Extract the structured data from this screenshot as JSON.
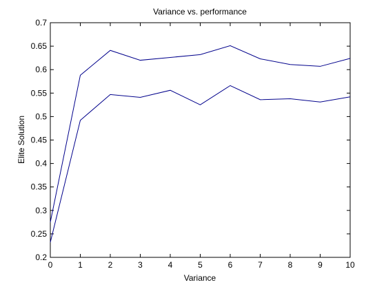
{
  "chart_data": {
    "type": "line",
    "title": "Variance vs. performance",
    "xlabel": "Variance",
    "ylabel": "Elite Solution",
    "xlim": [
      0,
      10
    ],
    "ylim": [
      0.2,
      0.7
    ],
    "x_ticks": [
      "0",
      "1",
      "2",
      "3",
      "4",
      "5",
      "6",
      "7",
      "8",
      "9",
      "10"
    ],
    "y_ticks": [
      "0.2",
      "0.25",
      "0.3",
      "0.35",
      "0.4",
      "0.45",
      "0.5",
      "0.55",
      "0.6",
      "0.65",
      "0.7"
    ],
    "grid": false,
    "line_color": "#00008B",
    "x": [
      0,
      1,
      2,
      3,
      4,
      5,
      6,
      7,
      8,
      9,
      10
    ],
    "series": [
      {
        "values": [
          0.275,
          0.588,
          0.641,
          0.62,
          0.626,
          0.632,
          0.651,
          0.623,
          0.611,
          0.607,
          0.624
        ]
      },
      {
        "values": [
          0.232,
          0.492,
          0.547,
          0.541,
          0.556,
          0.525,
          0.566,
          0.536,
          0.538,
          0.531,
          0.542
        ]
      }
    ]
  }
}
